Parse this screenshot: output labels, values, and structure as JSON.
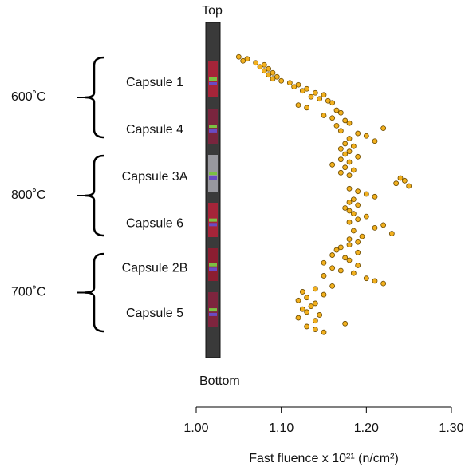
{
  "chart_data": {
    "type": "scatter",
    "top_label": "Top",
    "bottom_label": "Bottom",
    "x_label": "Fast fluence x 10²¹ (n/cm²)",
    "xlim": [
      1.0,
      1.3
    ],
    "xticks": [
      {
        "value": 1.0,
        "label": "1.00"
      },
      {
        "value": 1.1,
        "label": "1.10"
      },
      {
        "value": 1.2,
        "label": "1.20"
      },
      {
        "value": 1.3,
        "label": "1.30"
      }
    ],
    "color": "#f2b01e",
    "groups": [
      {
        "label": "600˚C",
        "capsules": [
          {
            "name": "Capsule 1",
            "values": [
              1.05,
              1.06,
              1.055,
              1.07,
              1.08,
              1.075,
              1.085,
              1.08,
              1.09,
              1.085,
              1.095,
              1.09,
              1.1,
              1.11,
              1.12,
              1.115,
              1.13,
              1.125,
              1.14,
              1.15,
              1.135,
              1.145,
              1.155,
              1.16
            ]
          },
          {
            "name": "Capsule 4",
            "values": [
              1.12,
              1.13,
              1.165,
              1.17,
              1.15,
              1.16,
              1.175,
              1.18,
              1.165,
              1.22,
              1.17,
              1.19,
              1.2,
              1.18,
              1.21,
              1.175,
              1.185,
              1.17
            ]
          }
        ]
      },
      {
        "label": "800˚C",
        "capsules": [
          {
            "name": "Capsule 3A",
            "values": [
              1.18,
              1.175,
              1.19,
              1.17,
              1.18,
              1.16,
              1.175,
              1.185,
              1.17,
              1.18,
              1.24,
              1.245,
              1.235,
              1.25,
              1.18,
              1.19,
              1.2,
              1.21
            ]
          },
          {
            "name": "Capsule 6",
            "values": [
              1.185,
              1.18,
              1.19,
              1.175,
              1.18,
              1.185,
              1.2,
              1.19,
              1.18,
              1.22,
              1.21,
              1.185,
              1.23,
              1.195,
              1.18,
              1.19
            ]
          }
        ]
      },
      {
        "label": "700˚C",
        "capsules": [
          {
            "name": "Capsule 2B",
            "values": [
              1.18,
              1.17,
              1.165,
              1.19,
              1.16,
              1.175,
              1.18,
              1.15,
              1.19,
              1.16,
              1.17,
              1.185,
              1.15,
              1.2,
              1.21,
              1.22,
              1.16
            ]
          },
          {
            "name": "Capsule 5",
            "values": [
              1.14,
              1.125,
              1.15,
              1.13,
              1.12,
              1.14,
              1.135,
              1.125,
              1.13,
              1.145,
              1.12,
              1.14,
              1.175,
              1.13,
              1.14,
              1.15
            ]
          }
        ]
      }
    ]
  }
}
